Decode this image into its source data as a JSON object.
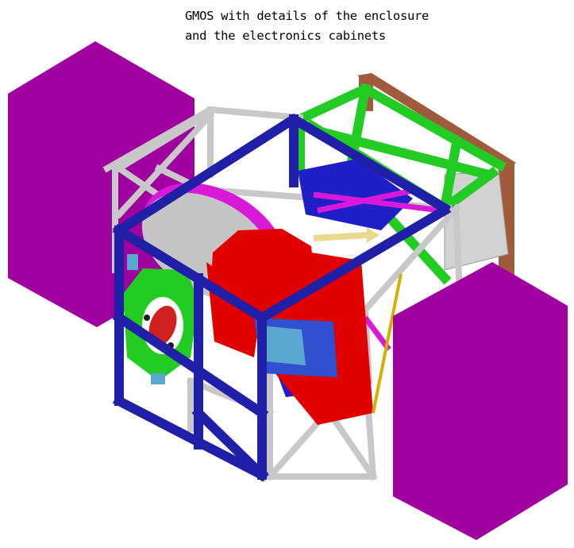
{
  "caption": {
    "line1": "GMOS with details of the enclosure",
    "line2": "and the electronics cabinets"
  },
  "colors": {
    "cabinet": "#a000a0",
    "frame_blue": "#1f1fa8",
    "frame_grey": "#c8c8c8",
    "frame_green": "#22cc22",
    "frame_brown": "#a05a3c",
    "optics_red": "#e00000",
    "magenta_ring": "#d81ad8"
  }
}
